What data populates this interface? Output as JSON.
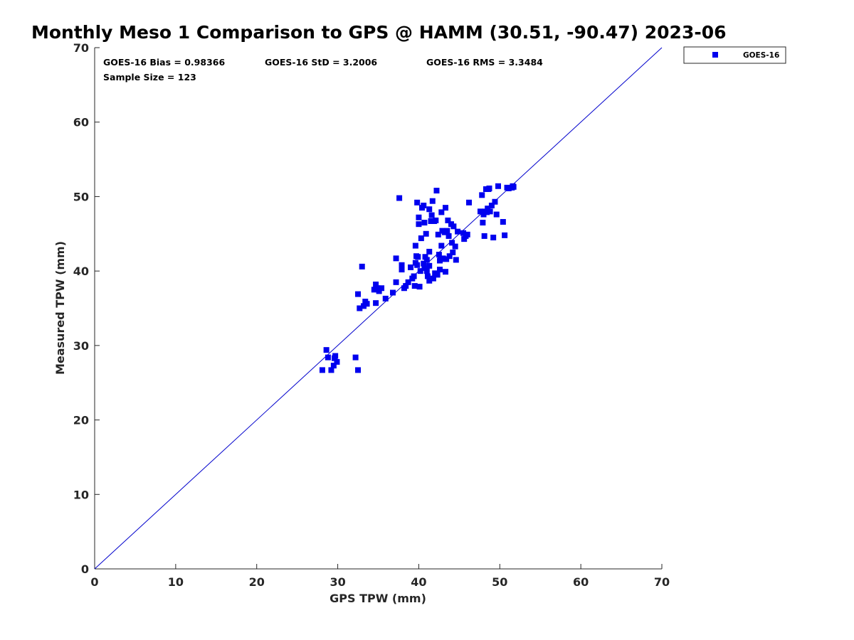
{
  "chart_data": {
    "type": "scatter",
    "title": "Monthly Meso 1 Comparison to GPS @ HAMM (30.51, -90.47) 2023-06",
    "xlabel": "GPS TPW (mm)",
    "ylabel": "Measured TPW (mm)",
    "xlim": [
      0,
      70
    ],
    "ylim": [
      0,
      70
    ],
    "xticks": [
      "0",
      "10",
      "20",
      "30",
      "40",
      "50",
      "60",
      "70"
    ],
    "yticks": [
      "0",
      "10",
      "20",
      "30",
      "40",
      "50",
      "60",
      "70"
    ],
    "grid": false,
    "legend_position": "top-right, outside plot",
    "reference_line": {
      "type": "one-to-one",
      "color": "#0000cc"
    },
    "stats": {
      "bias": "GOES-16 Bias = 0.98366",
      "std": "GOES-16 StD = 3.2006",
      "rms": "GOES-16 RMS = 3.3484",
      "sample_size": "Sample Size = 123"
    },
    "series": [
      {
        "name": "GOES-16",
        "color": "#0000ee",
        "marker": "square",
        "points": [
          [
            28.1,
            26.7
          ],
          [
            28.6,
            29.4
          ],
          [
            28.8,
            28.4
          ],
          [
            29.2,
            26.7
          ],
          [
            29.5,
            27.3
          ],
          [
            29.6,
            28.3
          ],
          [
            29.7,
            28.6
          ],
          [
            29.9,
            27.8
          ],
          [
            32.2,
            28.4
          ],
          [
            32.5,
            26.7
          ],
          [
            32.5,
            36.9
          ],
          [
            32.7,
            35.0
          ],
          [
            33.0,
            40.6
          ],
          [
            33.2,
            35.3
          ],
          [
            33.4,
            35.9
          ],
          [
            33.6,
            35.6
          ],
          [
            34.5,
            37.5
          ],
          [
            34.7,
            38.2
          ],
          [
            34.7,
            35.7
          ],
          [
            34.9,
            37.7
          ],
          [
            35.1,
            37.3
          ],
          [
            35.4,
            37.7
          ],
          [
            35.9,
            36.3
          ],
          [
            36.8,
            37.1
          ],
          [
            37.2,
            38.5
          ],
          [
            37.2,
            41.7
          ],
          [
            37.6,
            49.8
          ],
          [
            37.9,
            40.8
          ],
          [
            37.9,
            40.2
          ],
          [
            38.2,
            37.7
          ],
          [
            38.4,
            38.0
          ],
          [
            38.7,
            38.5
          ],
          [
            39.0,
            40.5
          ],
          [
            39.2,
            39.0
          ],
          [
            39.4,
            39.3
          ],
          [
            39.5,
            38.0
          ],
          [
            39.6,
            41.1
          ],
          [
            39.6,
            43.4
          ],
          [
            39.7,
            42.0
          ],
          [
            39.8,
            49.2
          ],
          [
            39.8,
            40.8
          ],
          [
            39.9,
            41.9
          ],
          [
            40.0,
            47.2
          ],
          [
            40.0,
            46.3
          ],
          [
            40.1,
            37.9
          ],
          [
            40.2,
            40.0
          ],
          [
            40.3,
            44.4
          ],
          [
            40.4,
            48.5
          ],
          [
            40.6,
            48.8
          ],
          [
            40.6,
            41.0
          ],
          [
            40.7,
            46.5
          ],
          [
            40.7,
            40.4
          ],
          [
            40.8,
            41.9
          ],
          [
            40.9,
            45.0
          ],
          [
            41.0,
            41.5
          ],
          [
            41.0,
            40.0
          ],
          [
            41.1,
            39.3
          ],
          [
            41.3,
            48.3
          ],
          [
            41.3,
            40.7
          ],
          [
            41.3,
            38.7
          ],
          [
            41.3,
            42.6
          ],
          [
            41.5,
            46.7
          ],
          [
            41.6,
            47.5
          ],
          [
            41.7,
            49.4
          ],
          [
            41.8,
            39.0
          ],
          [
            41.9,
            46.7
          ],
          [
            42.0,
            39.7
          ],
          [
            42.1,
            46.8
          ],
          [
            42.2,
            50.8
          ],
          [
            42.3,
            39.5
          ],
          [
            42.4,
            44.9
          ],
          [
            42.5,
            42.2
          ],
          [
            42.6,
            41.4
          ],
          [
            42.6,
            40.2
          ],
          [
            42.8,
            47.9
          ],
          [
            42.8,
            43.4
          ],
          [
            42.9,
            45.4
          ],
          [
            43.0,
            41.7
          ],
          [
            43.2,
            45.2
          ],
          [
            43.3,
            48.5
          ],
          [
            43.3,
            39.9
          ],
          [
            43.4,
            41.6
          ],
          [
            43.5,
            45.4
          ],
          [
            43.6,
            46.8
          ],
          [
            43.7,
            44.7
          ],
          [
            43.8,
            42.0
          ],
          [
            44.0,
            46.3
          ],
          [
            44.1,
            43.8
          ],
          [
            44.2,
            42.5
          ],
          [
            44.3,
            46.0
          ],
          [
            44.5,
            43.3
          ],
          [
            44.6,
            41.5
          ],
          [
            44.8,
            45.3
          ],
          [
            45.5,
            45.1
          ],
          [
            45.6,
            44.3
          ],
          [
            45.8,
            44.7
          ],
          [
            46.0,
            44.9
          ],
          [
            46.2,
            49.2
          ],
          [
            47.6,
            48.0
          ],
          [
            47.8,
            50.2
          ],
          [
            47.9,
            46.5
          ],
          [
            48.0,
            47.6
          ],
          [
            48.1,
            44.7
          ],
          [
            48.3,
            51.0
          ],
          [
            48.4,
            47.9
          ],
          [
            48.5,
            48.4
          ],
          [
            48.6,
            51.0
          ],
          [
            48.7,
            51.1
          ],
          [
            48.8,
            48.0
          ],
          [
            49.0,
            48.8
          ],
          [
            49.2,
            44.5
          ],
          [
            49.4,
            49.3
          ],
          [
            49.6,
            47.6
          ],
          [
            49.8,
            51.4
          ],
          [
            50.4,
            46.6
          ],
          [
            50.6,
            44.8
          ],
          [
            50.9,
            51.2
          ],
          [
            51.1,
            51.1
          ],
          [
            51.5,
            51.2
          ],
          [
            51.6,
            51.4
          ],
          [
            51.7,
            51.3
          ],
          [
            48.2,
            48.0
          ],
          [
            42.7,
            41.6
          ]
        ]
      }
    ]
  }
}
